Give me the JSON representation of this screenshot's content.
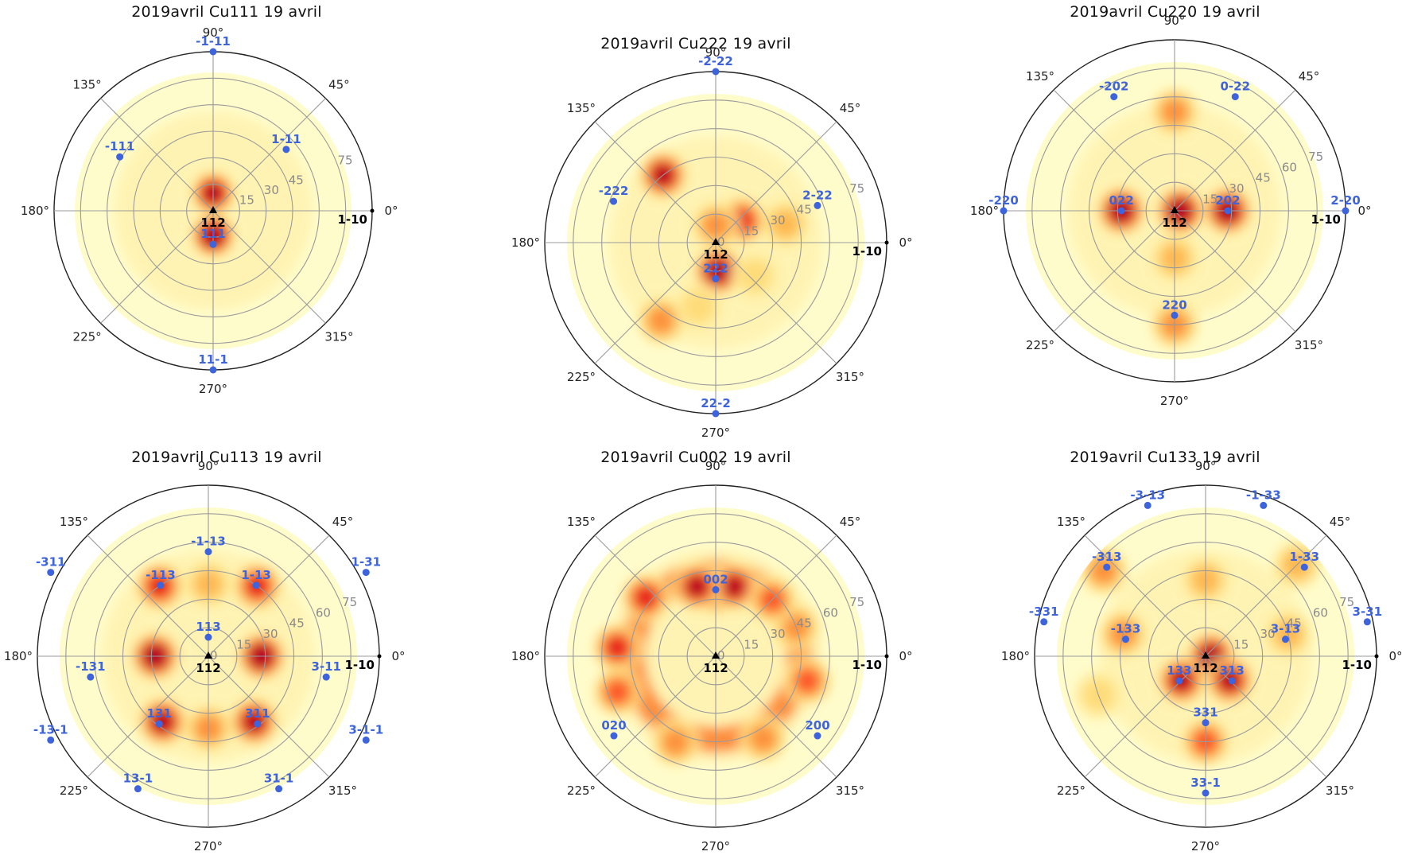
{
  "figure": {
    "colors": {
      "pole": "#3d63dd",
      "axis": "#222222",
      "grid": "#9a9a9a",
      "ring_label": "#8a8a8a"
    },
    "colormap": [
      "#fffccc",
      "#ffeda0",
      "#fed976",
      "#feb24c",
      "#fd8d3c",
      "#fc4e2a",
      "#e31a1c",
      "#b10026"
    ],
    "panels": [
      {
        "title": "2019avril  Cu111 19 avril",
        "angle_labels": [
          "0°",
          "45°",
          "90°",
          "135°",
          "180°",
          "225°",
          "270°",
          "315°"
        ],
        "radial_ticks": [
          "15",
          "30",
          "45",
          "75"
        ],
        "center_label": "112",
        "ref_label": "1-10",
        "poles": [
          {
            "label": "-1-11",
            "az": 90,
            "r": 90
          },
          {
            "label": "1-11",
            "az": 40,
            "r": 54
          },
          {
            "label": "-111",
            "az": 150,
            "r": 61
          },
          {
            "label": "111",
            "az": 270,
            "r": 19
          },
          {
            "label": "11-1",
            "az": 270,
            "r": 90
          }
        ],
        "blobs": [
          {
            "az": 90,
            "r": 10,
            "v": 0.85
          },
          {
            "az": 270,
            "r": 14,
            "v": 1.0
          }
        ]
      },
      {
        "title": "2019avril  Cu222 19 avril",
        "angle_labels": [
          "0°",
          "45°",
          "90°",
          "135°",
          "180°",
          "225°",
          "270°",
          "315°"
        ],
        "radial_ticks": [
          "0",
          "15",
          "30",
          "45",
          "75"
        ],
        "center_label": "112",
        "ref_label": "1-10",
        "poles": [
          {
            "label": "-2-22",
            "az": 90,
            "r": 90
          },
          {
            "label": "2-22",
            "az": 20,
            "r": 57
          },
          {
            "label": "-222",
            "az": 158,
            "r": 58
          },
          {
            "label": "222",
            "az": 270,
            "r": 19
          },
          {
            "label": "22-2",
            "az": 270,
            "r": 90
          }
        ],
        "blobs": [
          {
            "az": 128,
            "r": 45,
            "v": 0.85
          },
          {
            "az": 40,
            "r": 18,
            "v": 0.75
          },
          {
            "az": 275,
            "r": 15,
            "v": 1.0
          },
          {
            "az": 90,
            "r": 9,
            "v": 0.55
          },
          {
            "az": 235,
            "r": 50,
            "v": 0.55
          },
          {
            "az": 15,
            "r": 38,
            "v": 0.35
          },
          {
            "az": 320,
            "r": 27,
            "v": 0.3
          },
          {
            "az": 255,
            "r": 35,
            "v": 0.25
          }
        ]
      },
      {
        "title": "2019avril  Cu220 19 avril",
        "angle_labels": [
          "0°",
          "45°",
          "90°",
          "135°",
          "180°",
          "225°",
          "270°",
          "315°"
        ],
        "radial_ticks": [
          "15",
          "30",
          "45",
          "60",
          "75"
        ],
        "center_label": "112",
        "ref_label": "1-10",
        "poles": [
          {
            "label": "-202",
            "az": 118,
            "r": 68
          },
          {
            "label": "0-22",
            "az": 62,
            "r": 68
          },
          {
            "label": "-220",
            "az": 180,
            "r": 90
          },
          {
            "label": "022",
            "az": 180,
            "r": 28
          },
          {
            "label": "202",
            "az": 0,
            "r": 28
          },
          {
            "label": "2-20",
            "az": 0,
            "r": 90
          },
          {
            "label": "220",
            "az": 270,
            "r": 55
          }
        ],
        "blobs": [
          {
            "az": 0,
            "r": 3,
            "v": 1.0
          },
          {
            "az": 180,
            "r": 28,
            "v": 0.95
          },
          {
            "az": 0,
            "r": 28,
            "v": 0.95
          },
          {
            "az": 270,
            "r": 60,
            "v": 0.55
          },
          {
            "az": 90,
            "r": 52,
            "v": 0.45
          },
          {
            "az": 270,
            "r": 25,
            "v": 0.4
          }
        ]
      },
      {
        "title": "2019avril  Cu113 19 avril",
        "angle_labels": [
          "0°",
          "45°",
          "90°",
          "135°",
          "180°",
          "225°",
          "270°",
          "315°"
        ],
        "radial_ticks": [
          "0",
          "15",
          "30",
          "45",
          "60",
          "75"
        ],
        "center_label": "112",
        "ref_label": "1-10",
        "poles": [
          {
            "label": "-1-13",
            "az": 90,
            "r": 55
          },
          {
            "label": "-113",
            "az": 124,
            "r": 45
          },
          {
            "label": "1-13",
            "az": 56,
            "r": 45
          },
          {
            "label": "113",
            "az": 90,
            "r": 10
          },
          {
            "label": "-131",
            "az": 190,
            "r": 63
          },
          {
            "label": "3-11",
            "az": 350,
            "r": 63
          },
          {
            "label": "131",
            "az": 234,
            "r": 44
          },
          {
            "label": "311",
            "az": 306,
            "r": 44
          },
          {
            "label": "13-1",
            "az": 242,
            "r": 79
          },
          {
            "label": "31-1",
            "az": 298,
            "r": 79
          },
          {
            "label": "-311",
            "az": 152,
            "r": 94
          },
          {
            "label": "1-31",
            "az": 28,
            "r": 94
          },
          {
            "label": "-13-1",
            "az": 208,
            "r": 94
          },
          {
            "label": "3-1-1",
            "az": 332,
            "r": 94
          }
        ],
        "blobs": [
          {
            "az": 180,
            "r": 28,
            "v": 1.0
          },
          {
            "az": 0,
            "r": 28,
            "v": 1.0
          },
          {
            "az": 125,
            "r": 45,
            "v": 0.8
          },
          {
            "az": 55,
            "r": 45,
            "v": 0.75
          },
          {
            "az": 235,
            "r": 42,
            "v": 0.85
          },
          {
            "az": 305,
            "r": 42,
            "v": 0.85
          },
          {
            "az": 90,
            "r": 38,
            "v": 0.4
          },
          {
            "az": 270,
            "r": 38,
            "v": 0.45
          }
        ]
      },
      {
        "title": "2019avril  Cu002 19 avril",
        "angle_labels": [
          "0°",
          "45°",
          "90°",
          "135°",
          "180°",
          "225°",
          "270°",
          "315°"
        ],
        "radial_ticks": [
          "0",
          "15",
          "30",
          "45",
          "60",
          "75"
        ],
        "center_label": "112",
        "ref_label": "1-10",
        "poles": [
          {
            "label": "002",
            "az": 90,
            "r": 35
          },
          {
            "label": "020",
            "az": 218,
            "r": 68
          },
          {
            "label": "200",
            "az": 322,
            "r": 68
          }
        ],
        "blobs": [
          {
            "az": 90,
            "r": 35,
            "v": 1.0
          },
          {
            "az": 75,
            "r": 38,
            "v": 0.85
          },
          {
            "az": 105,
            "r": 38,
            "v": 0.85
          },
          {
            "az": 140,
            "r": 48,
            "v": 0.7
          },
          {
            "az": 175,
            "r": 52,
            "v": 0.8
          },
          {
            "az": 200,
            "r": 55,
            "v": 0.6
          },
          {
            "az": 245,
            "r": 50,
            "v": 0.45
          },
          {
            "az": 300,
            "r": 50,
            "v": 0.45
          },
          {
            "az": 345,
            "r": 50,
            "v": 0.65
          },
          {
            "az": 20,
            "r": 45,
            "v": 0.55
          },
          {
            "az": 45,
            "r": 42,
            "v": 0.6
          }
        ],
        "ring": {
          "r": 44,
          "w": 13,
          "v": 0.5
        }
      },
      {
        "title": "2019avril  Cu133 19 avril",
        "angle_labels": [
          "0°",
          "45°",
          "90°",
          "135°",
          "180°",
          "225°",
          "270°",
          "315°"
        ],
        "radial_ticks": [
          "15",
          "30",
          "45",
          "60",
          "75"
        ],
        "center_label": "112",
        "ref_label": "1-10",
        "poles": [
          {
            "label": "-3-13",
            "az": 111,
            "r": 85
          },
          {
            "label": "-1-33",
            "az": 69,
            "r": 85
          },
          {
            "label": "-313",
            "az": 138,
            "r": 70
          },
          {
            "label": "1-33",
            "az": 42,
            "r": 70
          },
          {
            "label": "-331",
            "az": 168,
            "r": 87
          },
          {
            "label": "3-31",
            "az": 12,
            "r": 87
          },
          {
            "label": "-133",
            "az": 168,
            "r": 43
          },
          {
            "label": "3-13",
            "az": 12,
            "r": 43
          },
          {
            "label": "133",
            "az": 223,
            "r": 19
          },
          {
            "label": "313",
            "az": 317,
            "r": 19
          },
          {
            "label": "331",
            "az": 270,
            "r": 35
          },
          {
            "label": "33-1",
            "az": 270,
            "r": 72
          }
        ],
        "blobs": [
          {
            "az": 0,
            "r": 3,
            "v": 1.0
          },
          {
            "az": 225,
            "r": 18,
            "v": 0.85
          },
          {
            "az": 315,
            "r": 18,
            "v": 0.85
          },
          {
            "az": 270,
            "r": 45,
            "v": 0.6
          },
          {
            "az": 140,
            "r": 70,
            "v": 0.55
          },
          {
            "az": 165,
            "r": 45,
            "v": 0.45
          },
          {
            "az": 15,
            "r": 45,
            "v": 0.4
          },
          {
            "az": 45,
            "r": 68,
            "v": 0.35
          },
          {
            "az": 90,
            "r": 40,
            "v": 0.35
          },
          {
            "az": 200,
            "r": 60,
            "v": 0.3
          }
        ]
      }
    ]
  }
}
